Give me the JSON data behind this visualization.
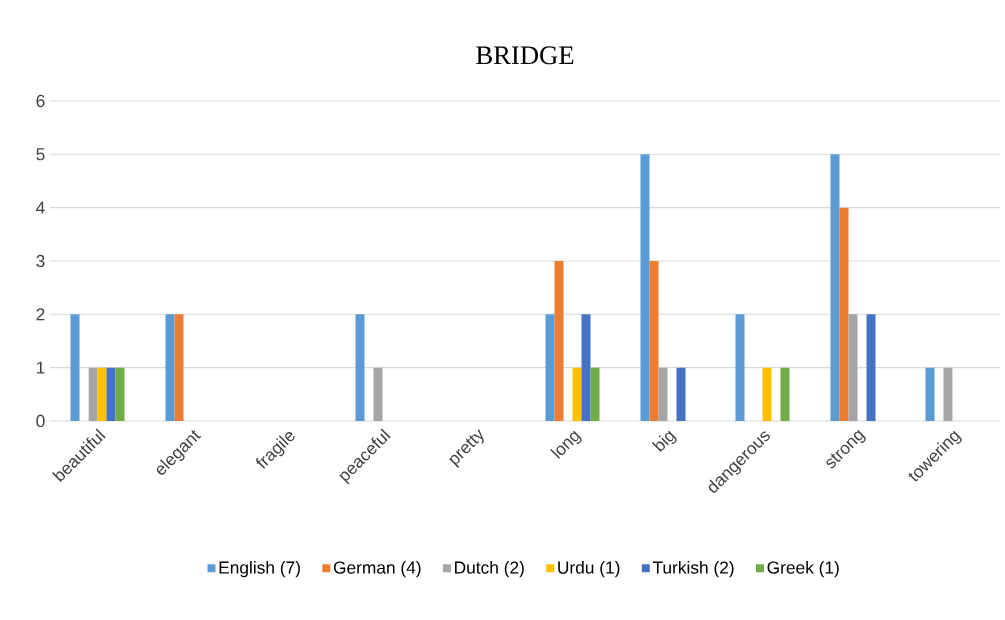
{
  "chart_data": {
    "type": "bar",
    "title": "BRIDGE",
    "categories": [
      "beautiful",
      "elegant",
      "fragile",
      "peaceful",
      "pretty",
      "long",
      "big",
      "dangerous",
      "strong",
      "towering"
    ],
    "series": [
      {
        "name": "English (7)",
        "color": "#5b9bd5",
        "values": [
          2,
          2,
          0,
          2,
          0,
          2,
          5,
          2,
          5,
          1
        ]
      },
      {
        "name": "German (4)",
        "color": "#ed7d31",
        "values": [
          0,
          2,
          0,
          0,
          0,
          3,
          3,
          0,
          4,
          0
        ]
      },
      {
        "name": "Dutch (2)",
        "color": "#a5a5a5",
        "values": [
          1,
          0,
          0,
          1,
          0,
          0,
          1,
          0,
          2,
          1
        ]
      },
      {
        "name": "Urdu (1)",
        "color": "#ffc000",
        "values": [
          1,
          0,
          0,
          0,
          0,
          1,
          0,
          1,
          0,
          0
        ]
      },
      {
        "name": "Turkish (2)",
        "color": "#4472c4",
        "values": [
          1,
          0,
          0,
          0,
          0,
          2,
          1,
          0,
          2,
          0
        ]
      },
      {
        "name": "Greek (1)",
        "color": "#70ad47",
        "values": [
          1,
          0,
          0,
          0,
          0,
          1,
          0,
          1,
          0,
          0
        ]
      }
    ],
    "ylim": [
      0,
      6
    ],
    "yticks": [
      0,
      1,
      2,
      3,
      4,
      5,
      6
    ],
    "grid": "y",
    "legend": "bottom"
  }
}
